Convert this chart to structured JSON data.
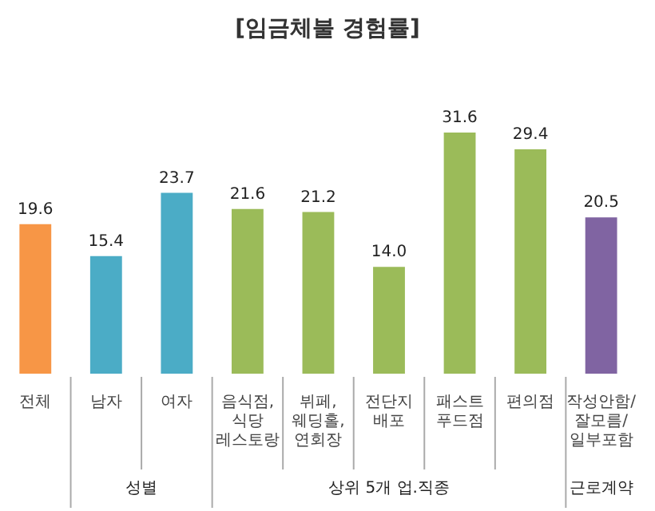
{
  "chart_data": {
    "type": "bar",
    "title": "[임금체불 경험률]",
    "categories": [
      "전체",
      "남자",
      "여자",
      "음식점,\n식당\n레스토랑",
      "뷔페,\n웨딩홀,\n연회장",
      "전단지\n배포",
      "패스트\n푸드점",
      "편의점",
      "작성안함/\n잘모름/\n일부포함"
    ],
    "values": [
      19.6,
      15.4,
      23.7,
      21.6,
      21.2,
      14.0,
      31.6,
      29.4,
      20.5
    ],
    "colors": [
      "#f79646",
      "#4bacc6",
      "#4bacc6",
      "#9bbb59",
      "#9bbb59",
      "#9bbb59",
      "#9bbb59",
      "#9bbb59",
      "#8064a2"
    ],
    "value_labels": [
      "19.6",
      "15.4",
      "23.7",
      "21.6",
      "21.2",
      "14.0",
      "31.6",
      "29.4",
      "20.5"
    ],
    "annotations": [
      "성별",
      "상위 5개 업.직종",
      "근로계약"
    ],
    "grid": false,
    "legend": false
  }
}
